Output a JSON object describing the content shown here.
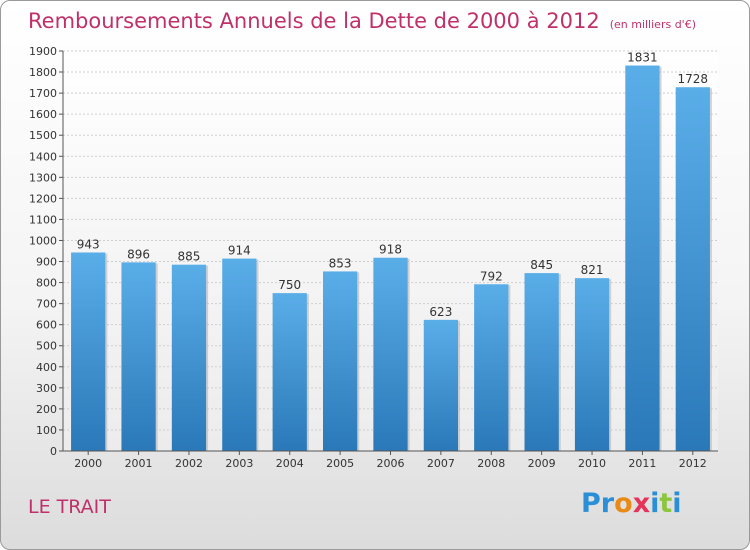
{
  "title": "Remboursements Annuels de la Dette de 2000 à 2012",
  "unit": "(en milliers d'€)",
  "commune": "LE TRAIT",
  "logo": {
    "text": "Proxiti",
    "letters": [
      {
        "ch": "P",
        "color": "#2a8fd6"
      },
      {
        "ch": "r",
        "color": "#2a8fd6"
      },
      {
        "ch": "o",
        "color": "#e88a14"
      },
      {
        "ch": "x",
        "color": "#e5335a"
      },
      {
        "ch": "i",
        "color": "#2a8fd6"
      },
      {
        "ch": "t",
        "color": "#8cc63f"
      },
      {
        "ch": "i",
        "color": "#2a8fd6"
      }
    ]
  },
  "colors": {
    "title": "#c0306a",
    "bar_top": "#5aaee8",
    "bar_bottom": "#2a78b8",
    "grid": "#cfcfcf"
  },
  "chart_data": {
    "type": "bar",
    "title": "Remboursements Annuels de la Dette de 2000 à 2012",
    "categories": [
      "2000",
      "2001",
      "2002",
      "2003",
      "2004",
      "2005",
      "2006",
      "2007",
      "2008",
      "2009",
      "2010",
      "2011",
      "2012"
    ],
    "values": [
      943,
      896,
      885,
      914,
      750,
      853,
      918,
      623,
      792,
      845,
      821,
      1831,
      1728
    ],
    "ylim": [
      0,
      1900
    ],
    "yticks": [
      0,
      100,
      200,
      300,
      400,
      500,
      600,
      700,
      800,
      900,
      1000,
      1100,
      1200,
      1300,
      1400,
      1500,
      1600,
      1700,
      1800,
      1900
    ],
    "grid": true,
    "xlabel": "",
    "ylabel": ""
  }
}
